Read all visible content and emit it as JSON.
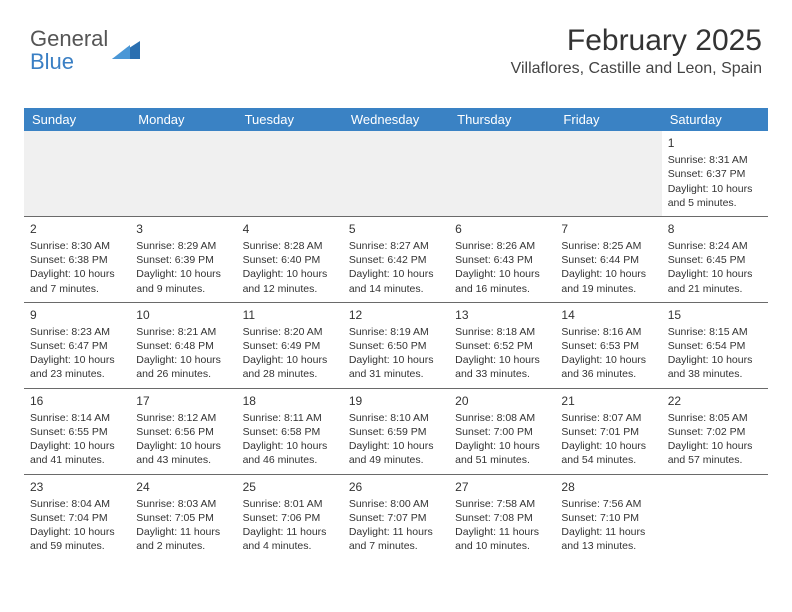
{
  "logo": {
    "text_top": "General",
    "text_bottom": "Blue",
    "shape_color": "#2b6fb0"
  },
  "header": {
    "month": "February 2025",
    "location": "Villaflores, Castille and Leon, Spain"
  },
  "colors": {
    "header_bg": "#3a82c4",
    "divider": "#6a6a6a",
    "empty_bg": "#f0f0f0"
  },
  "dayNames": [
    "Sunday",
    "Monday",
    "Tuesday",
    "Wednesday",
    "Thursday",
    "Friday",
    "Saturday"
  ],
  "weeks": [
    [
      {
        "empty": true
      },
      {
        "empty": true
      },
      {
        "empty": true
      },
      {
        "empty": true
      },
      {
        "empty": true
      },
      {
        "empty": true
      },
      {
        "day": "1",
        "sunrise": "Sunrise: 8:31 AM",
        "sunset": "Sunset: 6:37 PM",
        "dl1": "Daylight: 10 hours",
        "dl2": "and 5 minutes."
      }
    ],
    [
      {
        "day": "2",
        "sunrise": "Sunrise: 8:30 AM",
        "sunset": "Sunset: 6:38 PM",
        "dl1": "Daylight: 10 hours",
        "dl2": "and 7 minutes."
      },
      {
        "day": "3",
        "sunrise": "Sunrise: 8:29 AM",
        "sunset": "Sunset: 6:39 PM",
        "dl1": "Daylight: 10 hours",
        "dl2": "and 9 minutes."
      },
      {
        "day": "4",
        "sunrise": "Sunrise: 8:28 AM",
        "sunset": "Sunset: 6:40 PM",
        "dl1": "Daylight: 10 hours",
        "dl2": "and 12 minutes."
      },
      {
        "day": "5",
        "sunrise": "Sunrise: 8:27 AM",
        "sunset": "Sunset: 6:42 PM",
        "dl1": "Daylight: 10 hours",
        "dl2": "and 14 minutes."
      },
      {
        "day": "6",
        "sunrise": "Sunrise: 8:26 AM",
        "sunset": "Sunset: 6:43 PM",
        "dl1": "Daylight: 10 hours",
        "dl2": "and 16 minutes."
      },
      {
        "day": "7",
        "sunrise": "Sunrise: 8:25 AM",
        "sunset": "Sunset: 6:44 PM",
        "dl1": "Daylight: 10 hours",
        "dl2": "and 19 minutes."
      },
      {
        "day": "8",
        "sunrise": "Sunrise: 8:24 AM",
        "sunset": "Sunset: 6:45 PM",
        "dl1": "Daylight: 10 hours",
        "dl2": "and 21 minutes."
      }
    ],
    [
      {
        "day": "9",
        "sunrise": "Sunrise: 8:23 AM",
        "sunset": "Sunset: 6:47 PM",
        "dl1": "Daylight: 10 hours",
        "dl2": "and 23 minutes."
      },
      {
        "day": "10",
        "sunrise": "Sunrise: 8:21 AM",
        "sunset": "Sunset: 6:48 PM",
        "dl1": "Daylight: 10 hours",
        "dl2": "and 26 minutes."
      },
      {
        "day": "11",
        "sunrise": "Sunrise: 8:20 AM",
        "sunset": "Sunset: 6:49 PM",
        "dl1": "Daylight: 10 hours",
        "dl2": "and 28 minutes."
      },
      {
        "day": "12",
        "sunrise": "Sunrise: 8:19 AM",
        "sunset": "Sunset: 6:50 PM",
        "dl1": "Daylight: 10 hours",
        "dl2": "and 31 minutes."
      },
      {
        "day": "13",
        "sunrise": "Sunrise: 8:18 AM",
        "sunset": "Sunset: 6:52 PM",
        "dl1": "Daylight: 10 hours",
        "dl2": "and 33 minutes."
      },
      {
        "day": "14",
        "sunrise": "Sunrise: 8:16 AM",
        "sunset": "Sunset: 6:53 PM",
        "dl1": "Daylight: 10 hours",
        "dl2": "and 36 minutes."
      },
      {
        "day": "15",
        "sunrise": "Sunrise: 8:15 AM",
        "sunset": "Sunset: 6:54 PM",
        "dl1": "Daylight: 10 hours",
        "dl2": "and 38 minutes."
      }
    ],
    [
      {
        "day": "16",
        "sunrise": "Sunrise: 8:14 AM",
        "sunset": "Sunset: 6:55 PM",
        "dl1": "Daylight: 10 hours",
        "dl2": "and 41 minutes."
      },
      {
        "day": "17",
        "sunrise": "Sunrise: 8:12 AM",
        "sunset": "Sunset: 6:56 PM",
        "dl1": "Daylight: 10 hours",
        "dl2": "and 43 minutes."
      },
      {
        "day": "18",
        "sunrise": "Sunrise: 8:11 AM",
        "sunset": "Sunset: 6:58 PM",
        "dl1": "Daylight: 10 hours",
        "dl2": "and 46 minutes."
      },
      {
        "day": "19",
        "sunrise": "Sunrise: 8:10 AM",
        "sunset": "Sunset: 6:59 PM",
        "dl1": "Daylight: 10 hours",
        "dl2": "and 49 minutes."
      },
      {
        "day": "20",
        "sunrise": "Sunrise: 8:08 AM",
        "sunset": "Sunset: 7:00 PM",
        "dl1": "Daylight: 10 hours",
        "dl2": "and 51 minutes."
      },
      {
        "day": "21",
        "sunrise": "Sunrise: 8:07 AM",
        "sunset": "Sunset: 7:01 PM",
        "dl1": "Daylight: 10 hours",
        "dl2": "and 54 minutes."
      },
      {
        "day": "22",
        "sunrise": "Sunrise: 8:05 AM",
        "sunset": "Sunset: 7:02 PM",
        "dl1": "Daylight: 10 hours",
        "dl2": "and 57 minutes."
      }
    ],
    [
      {
        "day": "23",
        "sunrise": "Sunrise: 8:04 AM",
        "sunset": "Sunset: 7:04 PM",
        "dl1": "Daylight: 10 hours",
        "dl2": "and 59 minutes."
      },
      {
        "day": "24",
        "sunrise": "Sunrise: 8:03 AM",
        "sunset": "Sunset: 7:05 PM",
        "dl1": "Daylight: 11 hours",
        "dl2": "and 2 minutes."
      },
      {
        "day": "25",
        "sunrise": "Sunrise: 8:01 AM",
        "sunset": "Sunset: 7:06 PM",
        "dl1": "Daylight: 11 hours",
        "dl2": "and 4 minutes."
      },
      {
        "day": "26",
        "sunrise": "Sunrise: 8:00 AM",
        "sunset": "Sunset: 7:07 PM",
        "dl1": "Daylight: 11 hours",
        "dl2": "and 7 minutes."
      },
      {
        "day": "27",
        "sunrise": "Sunrise: 7:58 AM",
        "sunset": "Sunset: 7:08 PM",
        "dl1": "Daylight: 11 hours",
        "dl2": "and 10 minutes."
      },
      {
        "day": "28",
        "sunrise": "Sunrise: 7:56 AM",
        "sunset": "Sunset: 7:10 PM",
        "dl1": "Daylight: 11 hours",
        "dl2": "and 13 minutes."
      },
      {
        "empty": true,
        "plain": true
      }
    ]
  ]
}
